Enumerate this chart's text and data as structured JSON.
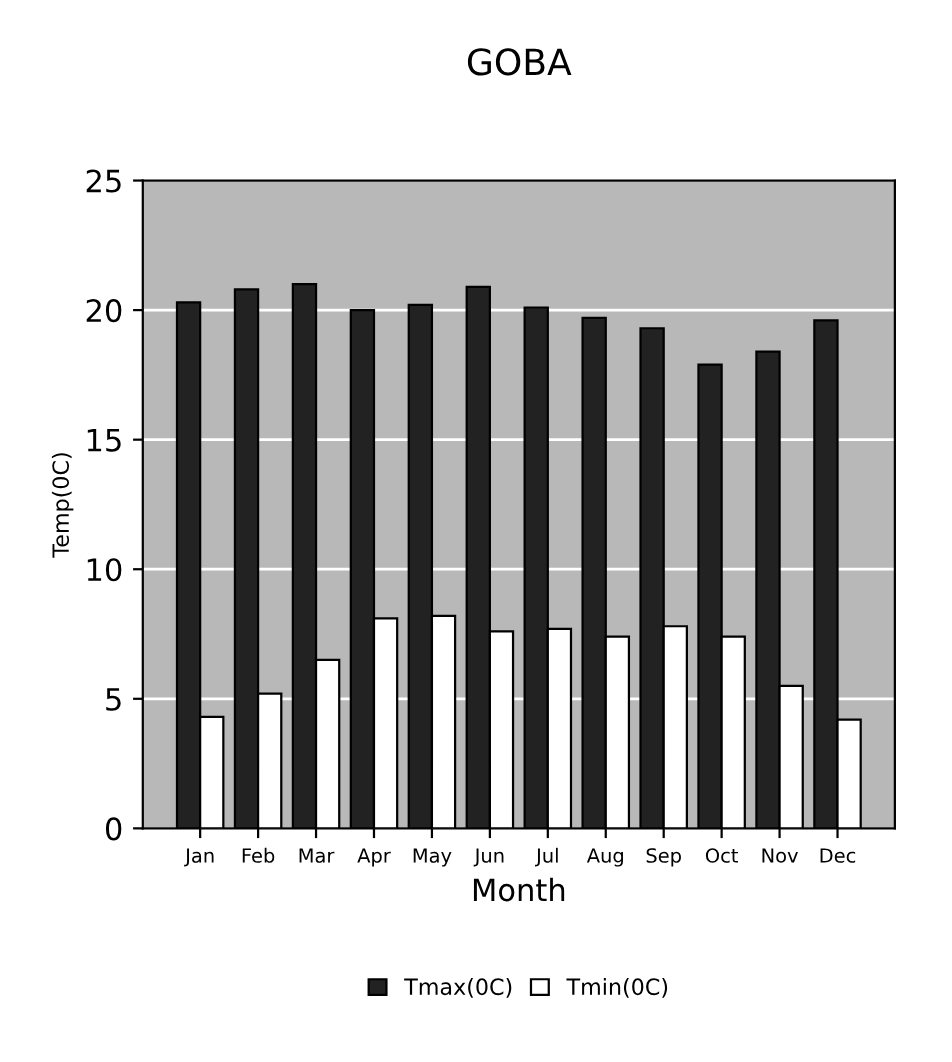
{
  "chart_data": {
    "type": "bar",
    "title": "GOBA",
    "xlabel": "Month",
    "ylabel": "Temp(0C)",
    "categories": [
      "Jan",
      "Feb",
      "Mar",
      "Apr",
      "May",
      "Jun",
      "Jul",
      "Aug",
      "Sep",
      "Oct",
      "Nov",
      "Dec"
    ],
    "series": [
      {
        "name": "Tmax(0C)",
        "color": "#222222",
        "values": [
          20.3,
          20.8,
          21.0,
          20.0,
          20.2,
          20.9,
          20.1,
          19.7,
          19.3,
          17.9,
          18.4,
          19.6
        ]
      },
      {
        "name": "Tmin(0C)",
        "color": "#ffffff",
        "values": [
          4.3,
          5.2,
          6.5,
          8.1,
          8.2,
          7.6,
          7.7,
          7.4,
          7.8,
          7.4,
          5.5,
          4.2
        ]
      }
    ],
    "ylim": [
      0,
      25
    ],
    "yticks": [
      0,
      5,
      10,
      15,
      20,
      25
    ],
    "grid": "y",
    "legend": "bottom"
  }
}
